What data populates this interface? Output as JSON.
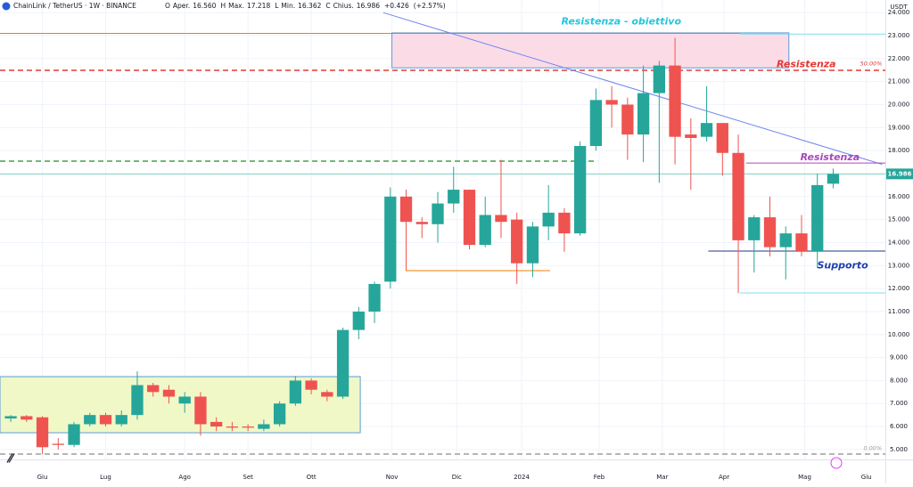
{
  "header": {
    "symbol": "ChainLink / TetherUS · 1W · BINANCE",
    "items": [
      "O",
      "Aper.",
      "16.560",
      "H",
      "Max.",
      "17.218",
      "L",
      "Min.",
      "16.362",
      "C",
      "Chius.",
      "16.986",
      "+0.426",
      "(+2.57%)"
    ]
  },
  "chart_data": {
    "type": "candlestick",
    "currency": "USDT",
    "up_color": "#26a69a",
    "down_color": "#ef5350",
    "open": [
      6.35,
      6.45,
      6.4,
      5.25,
      5.2,
      6.1,
      6.5,
      6.1,
      6.5,
      7.8,
      7.6,
      7.0,
      7.3,
      6.2,
      6.0,
      6.0,
      5.9,
      6.1,
      7.0,
      8.0,
      7.5,
      7.3,
      10.2,
      11.0,
      12.3,
      16.0,
      14.9,
      14.8,
      15.7,
      16.3,
      13.9,
      15.2,
      15.0,
      13.1,
      14.7,
      15.3,
      14.4,
      18.2,
      20.2,
      20.0,
      18.7,
      20.5,
      21.7,
      18.7,
      18.6,
      19.2,
      17.9,
      14.1,
      15.1,
      13.8,
      14.4,
      13.6,
      16.56
    ],
    "high": [
      6.5,
      6.5,
      6.45,
      5.5,
      6.2,
      6.6,
      6.6,
      6.7,
      8.4,
      7.9,
      7.8,
      7.5,
      7.5,
      6.4,
      6.2,
      6.1,
      6.3,
      7.1,
      8.2,
      8.1,
      7.6,
      10.3,
      11.2,
      12.3,
      16.4,
      16.3,
      15.1,
      16.2,
      17.3,
      16.3,
      16.0,
      17.6,
      15.3,
      14.9,
      16.5,
      15.5,
      18.4,
      20.7,
      20.8,
      20.3,
      21.7,
      21.9,
      22.9,
      19.4,
      20.8,
      19.2,
      18.7,
      15.2,
      16.0,
      14.7,
      15.2,
      17.0,
      17.218
    ],
    "low": [
      6.2,
      6.2,
      4.8,
      5.0,
      5.1,
      6.0,
      6.0,
      6.0,
      6.3,
      7.3,
      7.0,
      6.6,
      5.6,
      5.8,
      5.8,
      5.8,
      5.8,
      6.0,
      6.9,
      7.4,
      7.1,
      7.2,
      9.8,
      10.5,
      12.0,
      12.8,
      14.2,
      14.0,
      15.3,
      13.7,
      13.8,
      14.2,
      12.2,
      12.5,
      14.1,
      13.6,
      14.3,
      18.0,
      19.0,
      17.6,
      17.5,
      16.6,
      17.4,
      16.3,
      18.4,
      16.9,
      11.8,
      12.7,
      13.4,
      12.4,
      13.4,
      12.9,
      16.362
    ],
    "close": [
      6.45,
      6.3,
      5.1,
      5.2,
      6.1,
      6.5,
      6.1,
      6.5,
      7.8,
      7.5,
      7.3,
      7.3,
      6.1,
      6.0,
      5.95,
      5.95,
      6.1,
      7.0,
      8.0,
      7.6,
      7.3,
      10.2,
      11.0,
      12.2,
      16.0,
      14.9,
      14.8,
      15.7,
      16.3,
      13.9,
      15.2,
      14.9,
      13.1,
      14.7,
      15.3,
      14.4,
      18.2,
      20.2,
      20.0,
      18.7,
      20.5,
      21.7,
      18.6,
      18.55,
      19.2,
      17.9,
      14.1,
      15.1,
      13.8,
      14.4,
      13.6,
      16.5,
      16.986
    ],
    "xlim": [
      -0.68,
      55.3
    ],
    "xticks": [
      {
        "value": 2,
        "label": "Giu"
      },
      {
        "value": 6,
        "label": "Lug"
      },
      {
        "value": 11,
        "label": "Ago"
      },
      {
        "value": 15,
        "label": "Set"
      },
      {
        "value": 19,
        "label": "Ott"
      },
      {
        "value": 24.1,
        "label": "Nov"
      },
      {
        "value": 28.2,
        "label": "Dic"
      },
      {
        "value": 32.3,
        "label": "2024"
      },
      {
        "value": 37.2,
        "label": "Feb"
      },
      {
        "value": 41.2,
        "label": "Mar"
      },
      {
        "value": 45.1,
        "label": "Apr"
      },
      {
        "value": 50.2,
        "label": "Mag"
      },
      {
        "value": 54.1,
        "label": "Giu"
      }
    ],
    "ylim": [
      4.57,
      24.55
    ],
    "yticks": [
      {
        "value": 5,
        "label": "5.000"
      },
      {
        "value": 6,
        "label": "6.000"
      },
      {
        "value": 7,
        "label": "7.000"
      },
      {
        "value": 8,
        "label": "8.000"
      },
      {
        "value": 9,
        "label": "9.000"
      },
      {
        "value": 10,
        "label": "10.000"
      },
      {
        "value": 11,
        "label": "11.000"
      },
      {
        "value": 12,
        "label": "12.000"
      },
      {
        "value": 13,
        "label": "13.000"
      },
      {
        "value": 14,
        "label": "14.000"
      },
      {
        "value": 15,
        "label": "15.000"
      },
      {
        "value": 16,
        "label": "16.000"
      },
      {
        "value": 17,
        "label": "17.000"
      },
      {
        "value": 18,
        "label": "18.000"
      },
      {
        "value": 19,
        "label": "19.000"
      },
      {
        "value": 20,
        "label": "20.000"
      },
      {
        "value": 21,
        "label": "21.000"
      },
      {
        "value": 22,
        "label": "22.000"
      },
      {
        "value": 23,
        "label": "23.000"
      },
      {
        "value": 24,
        "label": "24.000"
      }
    ],
    "last_price": {
      "value": 16.986,
      "label": "16.986"
    },
    "zones": [
      {
        "x": [
          -0.68,
          22.1
        ],
        "y": [
          5.73,
          8.17
        ],
        "fill": "#f0f8c8",
        "stroke": "#5b9bd5"
      },
      {
        "x": [
          24.1,
          49.2
        ],
        "y": [
          21.6,
          23.12
        ],
        "fill": "#fbdbe6",
        "stroke": "#5b9bd5"
      }
    ],
    "lines": [
      {
        "x": [
          -0.68,
          46.1
        ],
        "y": [
          23.1,
          23.1
        ],
        "color": "#f57c00",
        "dashed": false
      },
      {
        "x": [
          46.1,
          55.3
        ],
        "y": [
          23.07,
          23.07
        ],
        "color": "#80deea",
        "dashed": false
      },
      {
        "x": [
          -0.68,
          55.3
        ],
        "y": [
          21.49,
          21.49
        ],
        "color": "#e53935",
        "dashed": true
      },
      {
        "x": [
          23.55,
          55.1
        ],
        "y": [
          24.0,
          17.4
        ],
        "color": "#6f86f0",
        "dashed": false
      },
      {
        "x": [
          -0.68,
          37.1
        ],
        "y": [
          17.54,
          17.54
        ],
        "color": "#43a047",
        "dashed": true
      },
      {
        "x": [
          -0.68,
          55.3
        ],
        "y": [
          16.986,
          16.986
        ],
        "color": "#7fd3c9",
        "dashed": false
      },
      {
        "x": [
          46.5,
          55.3
        ],
        "y": [
          17.46,
          17.46
        ],
        "color": "#ab47bc",
        "dashed": false
      },
      {
        "x": [
          24.96,
          34.1
        ],
        "y": [
          12.78,
          12.78
        ],
        "color": "#f57c00",
        "dashed": false
      },
      {
        "x": [
          44.1,
          55.3
        ],
        "y": [
          13.63,
          13.63
        ],
        "color": "#1e3a8a",
        "dashed": false
      },
      {
        "x": [
          46.1,
          55.3
        ],
        "y": [
          11.81,
          11.81
        ],
        "color": "#80deea",
        "dashed": false
      },
      {
        "x": [
          -0.68,
          55.3
        ],
        "y": [
          4.8,
          4.8
        ],
        "color": "#9e9e9e",
        "dashed": true
      }
    ],
    "annotations": [
      {
        "text": "Resistenza - obiettivo",
        "x": 38.6,
        "y": 23.6,
        "color": "#26c6da",
        "size": 11
      },
      {
        "text": "Resistenza",
        "x": 50.3,
        "y": 21.75,
        "color": "#e53935",
        "size": 11
      },
      {
        "text": "50.00%",
        "x": 54.4,
        "y": 21.78,
        "color": "#e53935",
        "size": 6.5
      },
      {
        "text": "Resistenza",
        "x": 51.8,
        "y": 17.7,
        "color": "#ab47bc",
        "size": 11
      },
      {
        "text": "Supporto",
        "x": 52.6,
        "y": 13.0,
        "color": "#1e40af",
        "size": 11
      },
      {
        "text": "0.00%",
        "x": 54.5,
        "y": 5.05,
        "color": "#9e9e9e",
        "size": 6.5
      }
    ]
  }
}
